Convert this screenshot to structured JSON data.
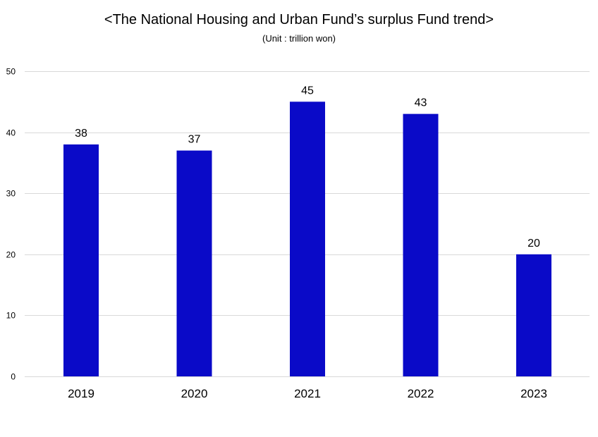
{
  "chart_data": {
    "type": "bar",
    "title": "<The National Housing and Urban Fund’s surplus Fund trend>",
    "subtitle": "(Unit : trillion won)",
    "xlabel": "",
    "ylabel": "",
    "categories": [
      "2019",
      "2020",
      "2021",
      "2022",
      "2023"
    ],
    "values": [
      38,
      37,
      45,
      43,
      20
    ],
    "data_labels": [
      "38",
      "37",
      "45",
      "43",
      "20"
    ],
    "ylim": [
      0,
      50
    ],
    "yticks": [
      0,
      10,
      20,
      30,
      40,
      50
    ],
    "grid": true,
    "legend": "none",
    "bar_color": "#0A0AC8",
    "grid_color": "#D9D9D9"
  }
}
